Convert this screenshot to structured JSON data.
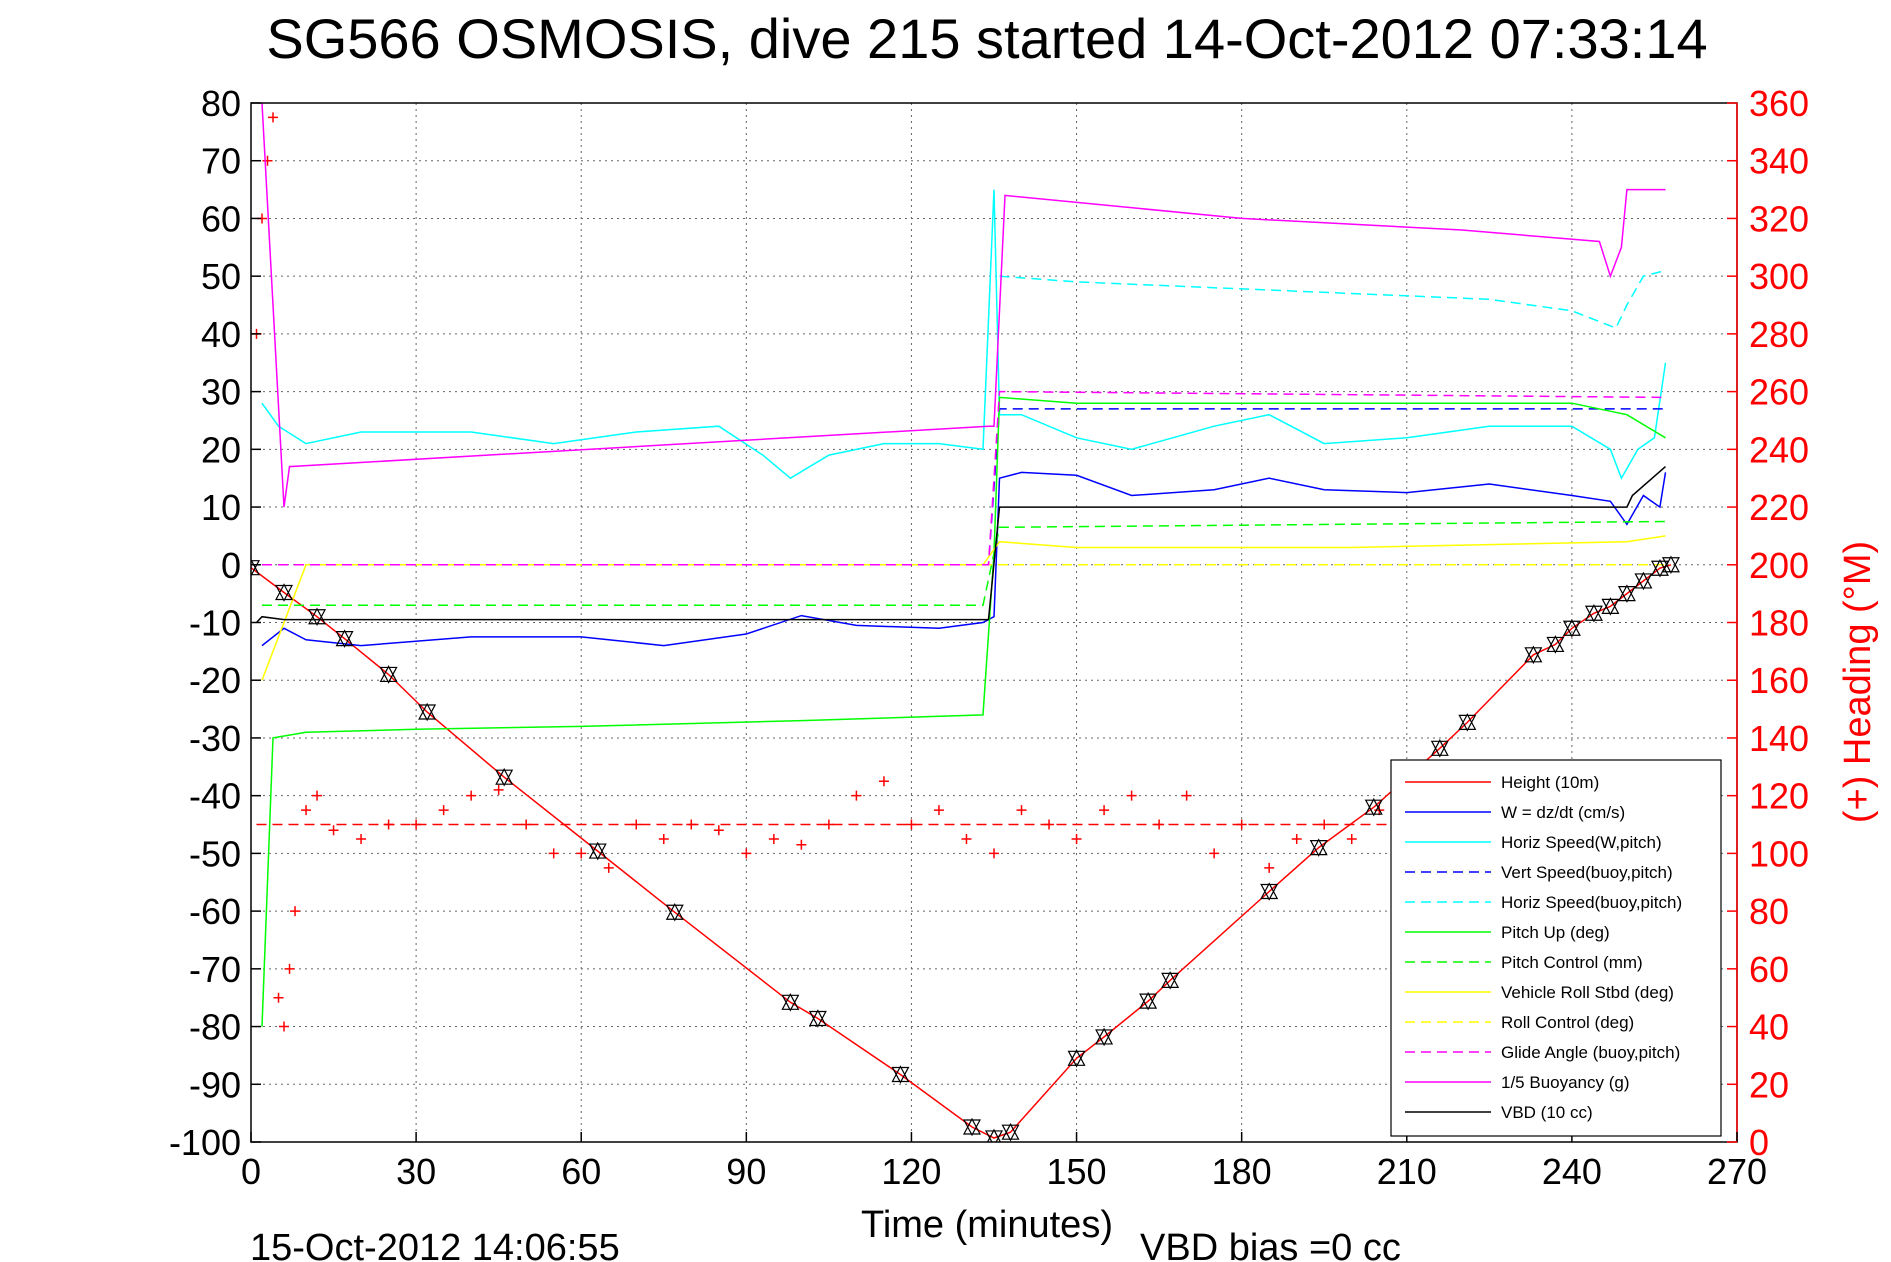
{
  "chart_data": {
    "type": "line",
    "title": "SG566 OSMOSIS, dive 215 started 14-Oct-2012 07:33:14",
    "xlabel": "Time (minutes)",
    "ylabel": "",
    "y2label": "(+) Heading (°M)",
    "xlim": [
      0,
      270
    ],
    "ylim": [
      -100,
      80
    ],
    "y2lim": [
      0,
      360
    ],
    "xticks": [
      0,
      30,
      60,
      90,
      120,
      150,
      180,
      210,
      240,
      270
    ],
    "yticks": [
      80,
      70,
      60,
      50,
      40,
      30,
      20,
      10,
      0,
      -10,
      -20,
      -30,
      -40,
      -50,
      -60,
      -70,
      -80,
      -90,
      -100
    ],
    "y2ticks": [
      360,
      340,
      320,
      300,
      280,
      260,
      240,
      220,
      200,
      180,
      160,
      140,
      120,
      100,
      80,
      60,
      40,
      20,
      0
    ],
    "grid": true,
    "legend_position": "bottom-right",
    "series": [
      {
        "name": "Height (10m)",
        "color": "#ff0000",
        "style": "solid",
        "x": [
          0,
          6,
          12,
          17,
          25,
          32,
          46,
          63,
          77,
          98,
          103,
          118,
          131,
          135,
          138,
          150,
          155,
          163,
          167,
          185,
          194,
          204,
          216,
          221,
          233,
          237,
          240,
          244,
          247,
          250,
          253,
          256,
          258
        ],
        "y": [
          -0.5,
          -4.8,
          -9,
          -12.8,
          -19,
          -25.5,
          -36.8,
          -49.6,
          -60.2,
          -75.8,
          -78.6,
          -88.3,
          -97.4,
          -99.3,
          -98.3,
          -85.5,
          -81.8,
          -75.6,
          -72,
          -56.6,
          -49,
          -42,
          -31.8,
          -27.3,
          -15.6,
          -13.8,
          -11,
          -8.4,
          -7.2,
          -5,
          -2.8,
          -0.6,
          0
        ]
      },
      {
        "name": "W = dz/dt (cm/s)",
        "color": "#0000ff",
        "style": "solid",
        "x": [
          2,
          6,
          10,
          20,
          40,
          60,
          75,
          90,
          100,
          110,
          125,
          133,
          135,
          136,
          140,
          150,
          160,
          175,
          185,
          195,
          210,
          225,
          240,
          247,
          250,
          253,
          256,
          257
        ],
        "y": [
          -14,
          -11,
          -13,
          -14,
          -12.5,
          -12.5,
          -14,
          -12,
          -8.8,
          -10.5,
          -11,
          -10,
          -9,
          15,
          16,
          15.5,
          12,
          13,
          15,
          13,
          12.5,
          14,
          12,
          11,
          7,
          12,
          10,
          16
        ]
      },
      {
        "name": "Horiz Speed(W,pitch)",
        "color": "#00ffff",
        "style": "solid",
        "x": [
          2,
          5,
          10,
          20,
          40,
          55,
          70,
          85,
          93,
          98,
          105,
          115,
          125,
          133,
          135,
          136,
          140,
          150,
          160,
          175,
          185,
          195,
          210,
          225,
          240,
          247,
          249,
          252,
          255,
          257
        ],
        "y": [
          28,
          24,
          21,
          23,
          23,
          21,
          23,
          24,
          19,
          15,
          19,
          21,
          21,
          20,
          65,
          26,
          26,
          22,
          20,
          24,
          26,
          21,
          22,
          24,
          24,
          20,
          15,
          20,
          22,
          35
        ]
      },
      {
        "name": "Vert Speed(buoy,pitch)",
        "color": "#0000ff",
        "style": "dashed",
        "x": [
          2,
          134,
          136,
          250,
          257
        ],
        "y": [
          0,
          0,
          27,
          27,
          27
        ]
      },
      {
        "name": "Horiz Speed(buoy,pitch)",
        "color": "#00ffff",
        "style": "dashed",
        "x": [
          136,
          150,
          175,
          200,
          225,
          240,
          248,
          250,
          253,
          257
        ],
        "y": [
          50,
          49,
          48,
          47,
          46,
          44,
          41,
          45,
          50,
          51
        ]
      },
      {
        "name": "Pitch Up (deg)",
        "color": "#00ff00",
        "style": "solid",
        "x": [
          2,
          4,
          10,
          30,
          60,
          100,
          133,
          135,
          136,
          150,
          200,
          240,
          250,
          257
        ],
        "y": [
          -80,
          -30,
          -29,
          -28.5,
          -28,
          -27,
          -26,
          2,
          29,
          28,
          28,
          28,
          26,
          22
        ]
      },
      {
        "name": "Pitch Control (mm)",
        "color": "#00ff00",
        "style": "dashed",
        "x": [
          2,
          133,
          136,
          257
        ],
        "y": [
          -7,
          -7,
          6.5,
          7.5
        ]
      },
      {
        "name": "Vehicle Roll Stbd (deg)",
        "color": "#ffff00",
        "style": "solid",
        "x": [
          2,
          10,
          50,
          100,
          133,
          136,
          150,
          200,
          250,
          257
        ],
        "y": [
          -20,
          0,
          0,
          0,
          0,
          4,
          3,
          3,
          4,
          5
        ]
      },
      {
        "name": "Roll Control (deg)",
        "color": "#ffff00",
        "style": "dashed",
        "x": [
          2,
          133,
          136,
          257
        ],
        "y": [
          0,
          0,
          0,
          0
        ]
      },
      {
        "name": "Glide Angle (buoy,pitch)",
        "color": "#ff00ff",
        "style": "dashed",
        "x": [
          2,
          134,
          136,
          257
        ],
        "y": [
          0,
          0,
          30,
          29
        ]
      },
      {
        "name": "1/5 Buoyancy (g)",
        "color": "#ff00ff",
        "style": "solid",
        "x": [
          2,
          6,
          7,
          134,
          135,
          137,
          180,
          220,
          245,
          247,
          249,
          250,
          257
        ],
        "y": [
          80,
          10,
          17,
          24,
          24,
          64,
          60,
          58,
          56,
          50,
          55,
          65,
          65
        ]
      },
      {
        "name": "VBD (10 cc)",
        "color": "#000000",
        "style": "solid",
        "x": [
          1,
          2,
          6,
          10,
          134,
          136,
          138,
          250,
          251,
          257
        ],
        "y": [
          -10,
          -9,
          -9.5,
          -9.5,
          -9.5,
          10,
          10,
          10,
          12,
          17
        ]
      }
    ],
    "heading_series": {
      "color": "#ff0000",
      "marker": "+",
      "axis": "right",
      "x": [
        1,
        2,
        3,
        4,
        5,
        6,
        7,
        8,
        10,
        12,
        15,
        20,
        25,
        30,
        35,
        40,
        45,
        50,
        55,
        60,
        65,
        70,
        75,
        80,
        85,
        90,
        95,
        100,
        105,
        110,
        115,
        120,
        125,
        130,
        135,
        140,
        145,
        150,
        155,
        160,
        165,
        170,
        175,
        180,
        185,
        190,
        195,
        200,
        205,
        210
      ],
      "y": [
        280,
        320,
        340,
        355,
        50,
        40,
        60,
        80,
        115,
        120,
        108,
        105,
        110,
        110,
        115,
        120,
        122,
        110,
        100,
        100,
        95,
        110,
        105,
        110,
        108,
        100,
        105,
        103,
        110,
        120,
        125,
        110,
        115,
        105,
        100,
        115,
        110,
        105,
        115,
        120,
        110,
        120,
        100,
        110,
        95,
        105,
        110,
        105,
        115,
        100
      ]
    },
    "mean_heading": 110,
    "footer_date": "15-Oct-2012 14:06:55",
    "footer_note": "VBD bias =0 cc"
  }
}
